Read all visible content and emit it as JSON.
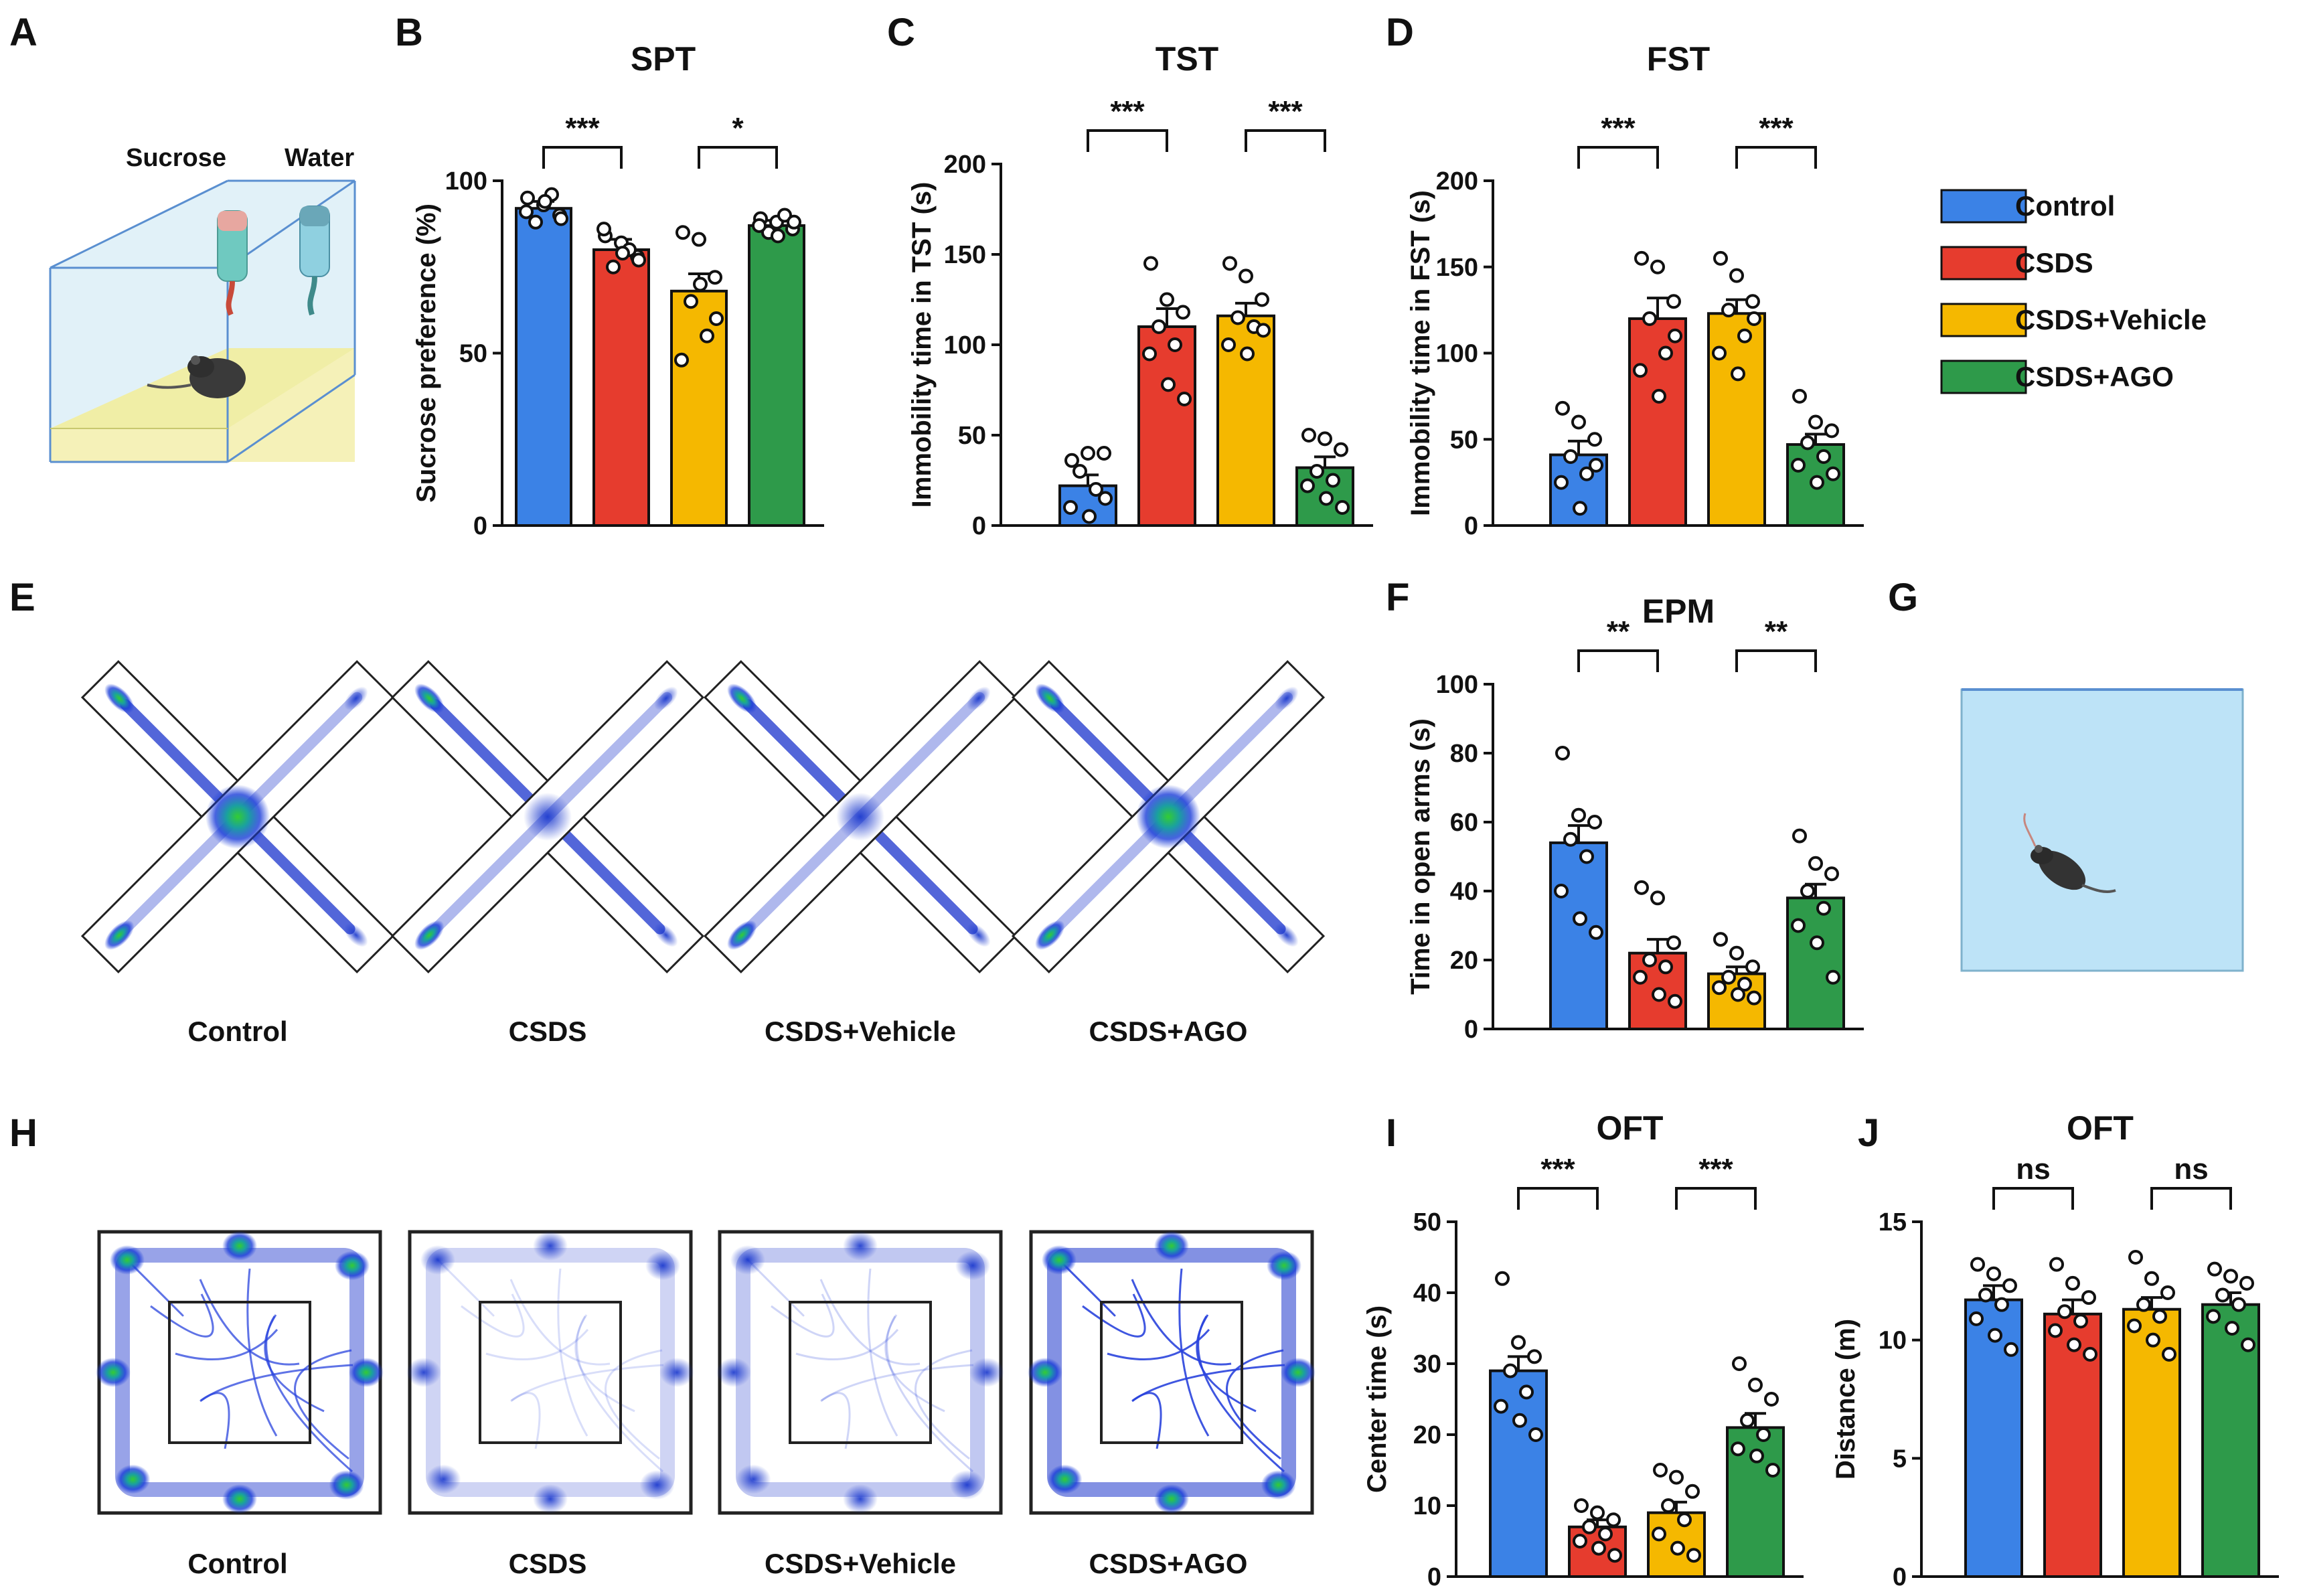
{
  "panel_letters": [
    "A",
    "B",
    "C",
    "D",
    "E",
    "F",
    "G",
    "H",
    "I",
    "J"
  ],
  "colors": {
    "control": "#3b82e6",
    "csds": "#e63c2e",
    "vehicle": "#f5b800",
    "ago": "#2e9a4a"
  },
  "legend": {
    "items": [
      "Control",
      "CSDS",
      "CSDS+Vehicle",
      "CSDS+AGO"
    ]
  },
  "panel_a": {
    "labels": [
      "Sucrose",
      "Water"
    ]
  },
  "panel_e": {
    "captions": [
      "Control",
      "CSDS",
      "CSDS+Vehicle",
      "CSDS+AGO"
    ]
  },
  "panel_h": {
    "captions": [
      "Control",
      "CSDS",
      "CSDS+Vehicle",
      "CSDS+AGO"
    ]
  },
  "chart_data": [
    {
      "id": "B",
      "type": "bar",
      "title": "SPT",
      "ylabel": "Sucrose preference (%)",
      "ylim": [
        0,
        100
      ],
      "ticks": [
        0,
        50,
        100
      ],
      "categories": [
        "Control",
        "CSDS",
        "CSDS+Vehicle",
        "CSDS+AGO"
      ],
      "values": [
        92,
        80,
        68,
        87
      ],
      "sem": [
        2,
        3,
        5,
        1.5
      ],
      "points": [
        [
          95,
          93,
          90,
          88,
          96,
          91,
          94,
          89
        ],
        [
          84,
          82,
          78,
          75,
          80,
          86,
          79,
          77
        ],
        [
          85,
          83,
          72,
          65,
          55,
          48,
          70,
          60
        ],
        [
          89,
          88,
          86,
          85,
          90,
          87,
          84,
          88
        ]
      ],
      "significance": [
        {
          "pair": [
            0,
            1
          ],
          "label": "***"
        },
        {
          "pair": [
            2,
            3
          ],
          "label": "*"
        }
      ]
    },
    {
      "id": "C",
      "type": "bar",
      "title": "TST",
      "ylabel": "Immobility time in TST (s)",
      "ylim": [
        0,
        200
      ],
      "ticks": [
        0,
        50,
        100,
        150,
        200
      ],
      "categories": [
        "Control",
        "CSDS",
        "CSDS+Vehicle",
        "CSDS+AGO"
      ],
      "values": [
        22,
        110,
        116,
        32
      ],
      "sem": [
        6,
        10,
        7,
        6
      ],
      "points": [
        [
          36,
          40,
          40,
          30,
          20,
          10,
          5,
          15
        ],
        [
          145,
          125,
          118,
          110,
          100,
          95,
          78,
          70
        ],
        [
          145,
          138,
          125,
          115,
          110,
          100,
          95,
          108
        ],
        [
          50,
          48,
          42,
          30,
          25,
          22,
          15,
          10
        ]
      ],
      "significance": [
        {
          "pair": [
            0,
            1
          ],
          "label": "***"
        },
        {
          "pair": [
            2,
            3
          ],
          "label": "***"
        }
      ]
    },
    {
      "id": "D",
      "type": "bar",
      "title": "FST",
      "ylabel": "Immobility time in FST (s)",
      "ylim": [
        0,
        200
      ],
      "ticks": [
        0,
        50,
        100,
        150,
        200
      ],
      "categories": [
        "Control",
        "CSDS",
        "CSDS+Vehicle",
        "CSDS+AGO"
      ],
      "values": [
        41,
        120,
        123,
        47
      ],
      "sem": [
        8,
        12,
        8,
        6
      ],
      "points": [
        [
          68,
          60,
          50,
          40,
          30,
          25,
          10,
          35
        ],
        [
          155,
          150,
          130,
          120,
          100,
          90,
          75,
          110
        ],
        [
          155,
          145,
          130,
          125,
          110,
          100,
          88,
          120
        ],
        [
          75,
          60,
          55,
          48,
          40,
          35,
          25,
          30
        ]
      ],
      "significance": [
        {
          "pair": [
            0,
            1
          ],
          "label": "***"
        },
        {
          "pair": [
            2,
            3
          ],
          "label": "***"
        }
      ]
    },
    {
      "id": "F",
      "type": "bar",
      "title": "EPM",
      "ylabel": "Time in open arms (s)",
      "ylim": [
        0,
        100
      ],
      "ticks": [
        0,
        20,
        40,
        60,
        80,
        100
      ],
      "categories": [
        "Control",
        "CSDS",
        "CSDS+Vehicle",
        "CSDS+AGO"
      ],
      "values": [
        54,
        22,
        16,
        38
      ],
      "sem": [
        5,
        4,
        2,
        4
      ],
      "points": [
        [
          80,
          62,
          60,
          55,
          50,
          40,
          32,
          28
        ],
        [
          41,
          38,
          25,
          20,
          18,
          15,
          10,
          8
        ],
        [
          26,
          22,
          18,
          15,
          13,
          12,
          10,
          9
        ],
        [
          56,
          48,
          45,
          40,
          35,
          30,
          25,
          15
        ]
      ],
      "significance": [
        {
          "pair": [
            0,
            1
          ],
          "label": "**"
        },
        {
          "pair": [
            2,
            3
          ],
          "label": "**"
        }
      ]
    },
    {
      "id": "I",
      "type": "bar",
      "title": "OFT",
      "ylabel": "Center time (s)",
      "ylim": [
        0,
        50
      ],
      "ticks": [
        0,
        10,
        20,
        30,
        40,
        50
      ],
      "categories": [
        "Control",
        "CSDS",
        "CSDS+Vehicle",
        "CSDS+AGO"
      ],
      "values": [
        29,
        7,
        9,
        21
      ],
      "sem": [
        2,
        1,
        1.5,
        2
      ],
      "points": [
        [
          42,
          33,
          31,
          29,
          26,
          24,
          22,
          20
        ],
        [
          10,
          9,
          8,
          7,
          6,
          5,
          4,
          3
        ],
        [
          15,
          14,
          12,
          10,
          8,
          6,
          4,
          3
        ],
        [
          30,
          27,
          25,
          22,
          20,
          18,
          17,
          15
        ]
      ],
      "significance": [
        {
          "pair": [
            0,
            1
          ],
          "label": "***"
        },
        {
          "pair": [
            2,
            3
          ],
          "label": "***"
        }
      ]
    },
    {
      "id": "J",
      "type": "bar",
      "title": "OFT",
      "ylabel": "Distance (m)",
      "ylim": [
        0,
        15
      ],
      "ticks": [
        0,
        5,
        10,
        15
      ],
      "categories": [
        "Control",
        "CSDS",
        "CSDS+Vehicle",
        "CSDS+AGO"
      ],
      "values": [
        11.7,
        11.1,
        11.3,
        11.5
      ],
      "sem": [
        0.6,
        0.6,
        0.5,
        0.5
      ],
      "points": [
        [
          13.2,
          12.8,
          12.3,
          11.9,
          11.5,
          10.9,
          10.2,
          9.6
        ],
        [
          13.2,
          12.4,
          11.8,
          11.2,
          10.8,
          10.4,
          9.8,
          9.4
        ],
        [
          13.5,
          12.6,
          12.0,
          11.5,
          11.0,
          10.6,
          10.0,
          9.4
        ],
        [
          13.0,
          12.7,
          12.4,
          11.9,
          11.5,
          11.0,
          10.5,
          9.8
        ]
      ],
      "significance": [
        {
          "pair": [
            0,
            1
          ],
          "label": "ns"
        },
        {
          "pair": [
            2,
            3
          ],
          "label": "ns"
        }
      ]
    }
  ]
}
